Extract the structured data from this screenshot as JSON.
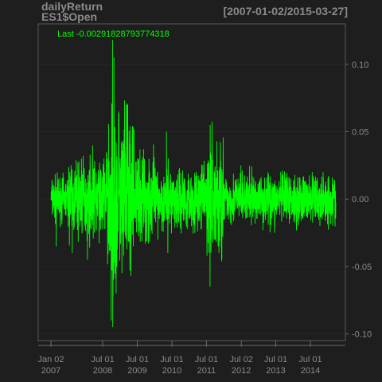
{
  "header": {
    "title_line1": "dailyReturn",
    "title_line2": "ES1$Open",
    "date_range": "[2007-01-02/2015-03-27]"
  },
  "last_label": "Last -0.00291828793774318",
  "chart_data": {
    "type": "line",
    "series": [
      {
        "values_description_free": true,
        "x_start": "2007-01-02",
        "x_end": "2015-03-27",
        "points": [
          [
            "2007-01-02",
            0.0
          ],
          [
            "2007-02-27",
            -0.035
          ],
          [
            "2007-07-20",
            0.02
          ],
          [
            "2007-08-16",
            -0.04
          ],
          [
            "2007-11-20",
            0.03
          ],
          [
            "2008-01-22",
            -0.045
          ],
          [
            "2008-03-17",
            0.04
          ],
          [
            "2008-07-15",
            0.03
          ],
          [
            "2008-09-29",
            -0.09
          ],
          [
            "2008-10-13",
            0.118
          ],
          [
            "2008-10-15",
            -0.095
          ],
          [
            "2008-10-28",
            0.105
          ],
          [
            "2008-11-20",
            -0.07
          ],
          [
            "2008-12-16",
            0.065
          ],
          [
            "2009-01-20",
            -0.055
          ],
          [
            "2009-03-10",
            0.07
          ],
          [
            "2009-03-23",
            0.07
          ],
          [
            "2009-07-13",
            0.03
          ],
          [
            "2009-11-02",
            0.03
          ],
          [
            "2010-02-04",
            -0.03
          ],
          [
            "2010-05-06",
            0.05
          ],
          [
            "2010-05-20",
            -0.04
          ],
          [
            "2011-08-08",
            -0.065
          ],
          [
            "2011-08-09",
            0.055
          ],
          [
            "2011-11-09",
            -0.04
          ],
          [
            "2012-06-29",
            0.025
          ],
          [
            "2013-06-20",
            -0.025
          ],
          [
            "2014-10-10",
            -0.02
          ],
          [
            "2015-03-27",
            -0.0029
          ]
        ]
      }
    ],
    "y_ticks": [
      "0.10",
      "0.05",
      "0.00",
      "-0.05",
      "-0.10"
    ],
    "y_tick_values": [
      0.1,
      0.05,
      0.0,
      -0.05,
      -0.1
    ],
    "ylim": [
      -0.105,
      0.13
    ],
    "x_ticks": [
      {
        "date": "2007-01-02",
        "line1": "Jan 02",
        "line2": "2007"
      },
      {
        "date": "2008-07-01",
        "line1": "Jul 01",
        "line2": "2008"
      },
      {
        "date": "2009-07-01",
        "line1": "Jul 01",
        "line2": "2009"
      },
      {
        "date": "2010-07-01",
        "line1": "Jul 01",
        "line2": "2010"
      },
      {
        "date": "2011-07-01",
        "line1": "Jul 01",
        "line2": "2011"
      },
      {
        "date": "2012-07-02",
        "line1": "Jul 02",
        "line2": "2012"
      },
      {
        "date": "2013-07-01",
        "line1": "Jul 01",
        "line2": "2013"
      },
      {
        "date": "2014-07-01",
        "line1": "Jul 01",
        "line2": "2014"
      }
    ],
    "line_color": "#00ff00",
    "grid": true,
    "y_axis_side": "right"
  }
}
